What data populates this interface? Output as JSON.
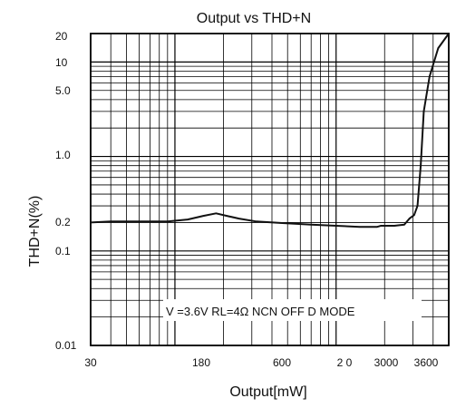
{
  "chart_data": {
    "type": "line",
    "title": "Output vs THD+N",
    "xlabel": "Output[mW]",
    "ylabel": "THD+N(%)",
    "x_scale": "log",
    "y_scale": "log",
    "xlim": [
      30,
      5000
    ],
    "ylim": [
      0.01,
      20
    ],
    "grid": true,
    "x_tick_labels": [
      "30",
      "180",
      "600",
      "2 0",
      "3000",
      "3600"
    ],
    "y_tick_labels": [
      "20",
      "10",
      "5.0",
      "1.0",
      "0.2",
      "0.1",
      "0.01"
    ],
    "annotation": "V  =3.6V RL=4Ω NCN OFF D MODE",
    "series": [
      {
        "color": "#111111",
        "points": [
          {
            "x": 30,
            "y": 0.2
          },
          {
            "x": 40,
            "y": 0.205
          },
          {
            "x": 60,
            "y": 0.205
          },
          {
            "x": 90,
            "y": 0.205
          },
          {
            "x": 120,
            "y": 0.215
          },
          {
            "x": 150,
            "y": 0.235
          },
          {
            "x": 180,
            "y": 0.25
          },
          {
            "x": 210,
            "y": 0.235
          },
          {
            "x": 250,
            "y": 0.22
          },
          {
            "x": 320,
            "y": 0.205
          },
          {
            "x": 450,
            "y": 0.198
          },
          {
            "x": 700,
            "y": 0.19
          },
          {
            "x": 1000,
            "y": 0.185
          },
          {
            "x": 1400,
            "y": 0.18
          },
          {
            "x": 1800,
            "y": 0.18
          },
          {
            "x": 1900,
            "y": 0.185
          },
          {
            "x": 2300,
            "y": 0.185
          },
          {
            "x": 2650,
            "y": 0.19
          },
          {
            "x": 2850,
            "y": 0.22
          },
          {
            "x": 3050,
            "y": 0.24
          },
          {
            "x": 3200,
            "y": 0.3
          },
          {
            "x": 3350,
            "y": 0.8
          },
          {
            "x": 3500,
            "y": 3.0
          },
          {
            "x": 3800,
            "y": 7.0
          },
          {
            "x": 4300,
            "y": 14.0
          },
          {
            "x": 5000,
            "y": 20.0
          }
        ]
      }
    ]
  }
}
